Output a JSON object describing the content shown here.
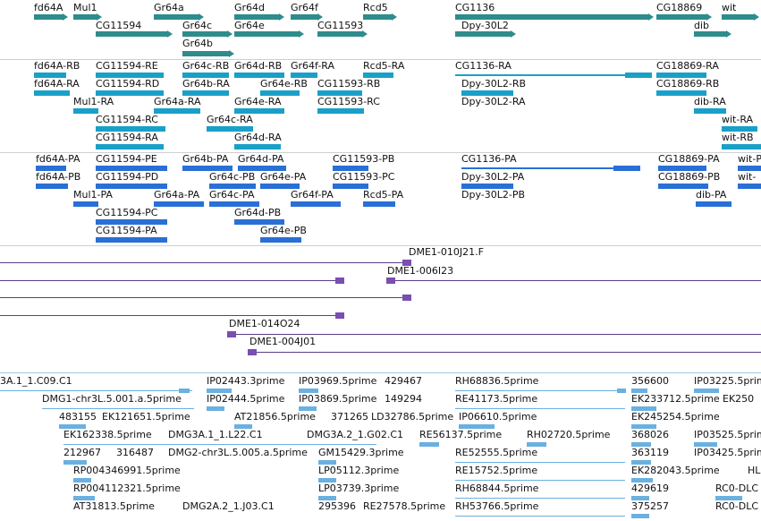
{
  "colors": {
    "gene": "#2f8c8c",
    "transcript": "#1aa0c8",
    "protein": "#2a6fd6",
    "bac": "#5a3d8a",
    "est": "#6ab0e0"
  },
  "genes": [
    "fd64A",
    "Mul1",
    "Gr64a",
    "Gr64d",
    "Gr64f",
    "Rcd5",
    "CG1136",
    "CG18869",
    "wit",
    "CG11594",
    "Gr64c",
    "Gr64e",
    "CG11593",
    "Dpy-30L2",
    "dib",
    "Gr64b"
  ],
  "transcripts": [
    "fd64A-RB",
    "CG11594-RE",
    "Gr64c-RB",
    "Gr64d-RB",
    "Gr64f-RA",
    "Rcd5-RA",
    "CG1136-RA",
    "CG18869-RA",
    "fd64A-RA",
    "CG11594-RD",
    "Gr64b-RA",
    "Gr64e-RB",
    "CG11593-RB",
    "Dpy-30L2-RB",
    "CG18869-RB",
    "Mul1-RA",
    "Gr64a-RA",
    "Gr64e-RA",
    "CG11593-RC",
    "Dpy-30L2-RA",
    "dib-RA",
    "CG11594-RC",
    "Gr64c-RA",
    "wit-RA",
    "CG11594-RA",
    "Gr64d-RA",
    "wit-RB"
  ],
  "proteins": [
    "fd64A-PA",
    "CG11594-PE",
    "Gr64b-PA",
    "Gr64d-PA",
    "CG11593-PB",
    "CG1136-PA",
    "CG18869-PA",
    "wit-P",
    "fd64A-PB",
    "CG11594-PD",
    "Gr64c-PB",
    "Gr64e-PA",
    "CG11593-PC",
    "Dpy-30L2-PA",
    "CG18869-PB",
    "wit-",
    "Mul1-PA",
    "Gr64a-PA",
    "Gr64c-PA",
    "Gr64f-PA",
    "Rcd5-PA",
    "Dpy-30L2-PB",
    "dib-PA",
    "CG11594-PC",
    "Gr64d-PB",
    "CG11594-PA",
    "Gr64e-PB"
  ],
  "bacs": [
    "DME1-010J21.F",
    "DME1-006I23",
    "DME1-014O24",
    "DME1-004J01"
  ],
  "ests": [
    "3A.1_1.C09.C1",
    "IP02443.3prime",
    "IP03969.5prime",
    "429467",
    "RH68836.5prime",
    "356600",
    "IP03225.5prime",
    "DMG1-chr3L.5.001.a.5prime",
    "IP02444.5prime",
    "IP03869.5prime",
    "149294",
    "RE41173.5prime",
    "EK233712.5prime",
    "EK250",
    "483155",
    "EK121651.5prime",
    "AT21856.5prime",
    "371265",
    "LD32786.5prime",
    "IP06610.5prime",
    "EK245254.5prime",
    "EK162338.5prime",
    "DMG3A.1_1.L22.C1",
    "DMG3A.2_1.G02.C1",
    "RE56137.5prime",
    "RH02720.5prime",
    "368026",
    "IP03525.5prime",
    "212967",
    "316487",
    "DMG2-chr3L.5.005.a.5prime",
    "GM15429.3prime",
    "RE52555.5prime",
    "363119",
    "IP03425.5prime",
    "RP004346991.5prime",
    "LP05112.3prime",
    "RE15752.5prime",
    "EK282043.5prime",
    "HL",
    "RP004112321.5prime",
    "LP03739.3prime",
    "RH68844.5prime",
    "429619",
    "RC0-DLC",
    "AT31813.5prime",
    "DMG2A.2_1.J03.C1",
    "295396",
    "RE27578.5prime",
    "RH53766.5prime",
    "375257"
  ]
}
